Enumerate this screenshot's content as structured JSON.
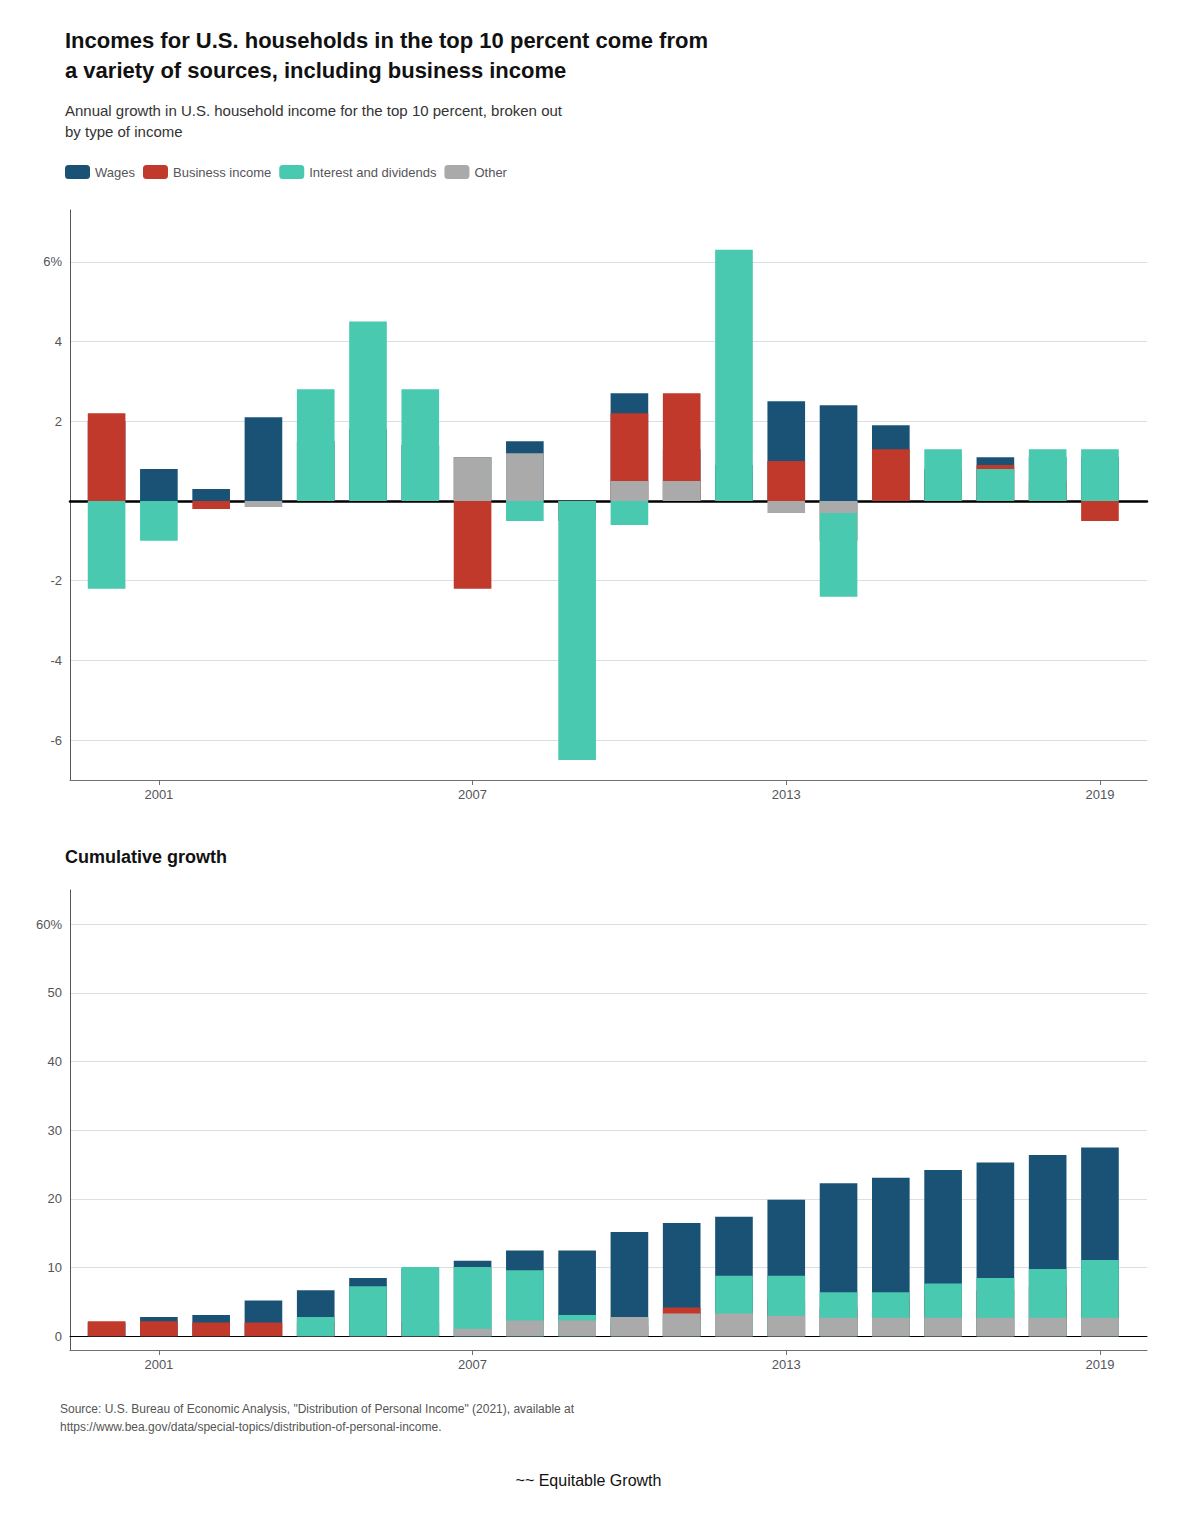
{
  "chart_data": [
    {
      "type": "bar",
      "title": "Incomes for U.S. households in the top 10 percent come from\na variety of sources, including business income",
      "subtitle": "Annual growth in U.S. household income for the top 10 percent, broken out\nby type of income",
      "x": [
        2000,
        2001,
        2002,
        2003,
        2004,
        2005,
        2006,
        2007,
        2008,
        2009,
        2010,
        2011,
        2012,
        2013,
        2014,
        2015,
        2016,
        2017,
        2018,
        2019
      ],
      "series": [
        {
          "name": "Wages",
          "color": "#1a5276",
          "values": [
            2.0,
            0.8,
            0.3,
            2.1,
            1.5,
            1.8,
            1.4,
            1.1,
            1.5,
            0.0,
            2.7,
            1.3,
            0.9,
            2.5,
            2.4,
            1.9,
            0.8,
            1.1,
            1.1,
            1.1
          ]
        },
        {
          "name": "Business income",
          "color": "#c0392b",
          "values": [
            2.2,
            0.0,
            -0.2,
            0.0,
            0.0,
            0.0,
            0.0,
            -2.2,
            0.0,
            -0.5,
            2.2,
            2.7,
            0.0,
            1.0,
            -1.0,
            1.3,
            0.7,
            0.9,
            0.5,
            -0.5
          ]
        },
        {
          "name": "Interest and dividends",
          "color": "#48c9b0",
          "values": [
            -2.2,
            -1.0,
            0.0,
            0.0,
            2.8,
            4.5,
            2.8,
            0.0,
            -0.5,
            -6.5,
            -0.6,
            0.0,
            6.3,
            0.0,
            -2.4,
            0.0,
            1.3,
            0.8,
            1.3,
            1.3
          ]
        },
        {
          "name": "Other",
          "color": "#aaaaaa",
          "values": [
            0.0,
            0.0,
            0.0,
            -0.15,
            0.0,
            0.0,
            0.0,
            1.1,
            1.2,
            0.0,
            0.5,
            0.5,
            0.0,
            -0.3,
            -0.3,
            0.0,
            0.0,
            0.0,
            0.0,
            0.0
          ]
        }
      ],
      "xlim": [
        1999.3,
        2019.9
      ],
      "xticks": [
        2001,
        2007,
        2013,
        2019
      ],
      "ylim": [
        -7,
        7.3
      ],
      "yticks": [
        -6,
        -4,
        -2,
        2,
        4,
        {
          "value": 6,
          "label": "6%"
        }
      ],
      "grid": true,
      "stacked": true,
      "legend": "top"
    },
    {
      "type": "bar",
      "title": "Cumulative growth",
      "x": [
        2000,
        2001,
        2002,
        2003,
        2004,
        2005,
        2006,
        2007,
        2008,
        2009,
        2010,
        2011,
        2012,
        2013,
        2014,
        2015,
        2016,
        2017,
        2018,
        2019
      ],
      "series": [
        {
          "name": "Wages",
          "color": "#1a5276",
          "values": [
            2.0,
            2.8,
            3.1,
            5.2,
            6.7,
            8.5,
            9.9,
            11.0,
            12.5,
            12.5,
            15.2,
            16.5,
            17.4,
            19.9,
            22.3,
            23.1,
            24.2,
            25.3,
            26.4,
            27.5
          ]
        },
        {
          "name": "Business income",
          "color": "#c0392b",
          "values": [
            2.2,
            2.2,
            2.0,
            2.0,
            2.0,
            2.0,
            2.0,
            0.0,
            0.0,
            0.0,
            1.5,
            4.2,
            4.2,
            5.2,
            4.2,
            5.5,
            6.2,
            6.7,
            7.2,
            6.7
          ]
        },
        {
          "name": "Interest and dividends",
          "color": "#48c9b0",
          "values": [
            0.0,
            0.0,
            0.0,
            0.0,
            2.8,
            7.3,
            10.1,
            10.1,
            9.6,
            3.1,
            2.5,
            2.5,
            8.8,
            8.8,
            6.4,
            6.4,
            7.7,
            8.5,
            9.8,
            11.1
          ]
        },
        {
          "name": "Other",
          "color": "#aaaaaa",
          "values": [
            0.0,
            0.0,
            0.0,
            0.0,
            0.0,
            0.0,
            0.0,
            1.1,
            2.3,
            2.3,
            2.8,
            3.3,
            3.3,
            3.0,
            2.7,
            2.7,
            2.7,
            2.7,
            2.7,
            2.7
          ]
        }
      ],
      "xlim": [
        1999.3,
        2019.9
      ],
      "xticks": [
        2001,
        2007,
        2013,
        2019
      ],
      "ylim": [
        -2,
        65
      ],
      "yticks": [
        0,
        10,
        20,
        30,
        40,
        50,
        {
          "value": 60,
          "label": "60%"
        }
      ],
      "grid": true,
      "stacked": true,
      "annotations": [
        "Source: U.S. Bureau of Economic Analysis, \"Distribution of Personal Income\" (2021), available at\nhttps://www.bea.gov/data/special-topics/distribution-of-personal-income.",
        "~~ Equitable Growth"
      ]
    }
  ]
}
